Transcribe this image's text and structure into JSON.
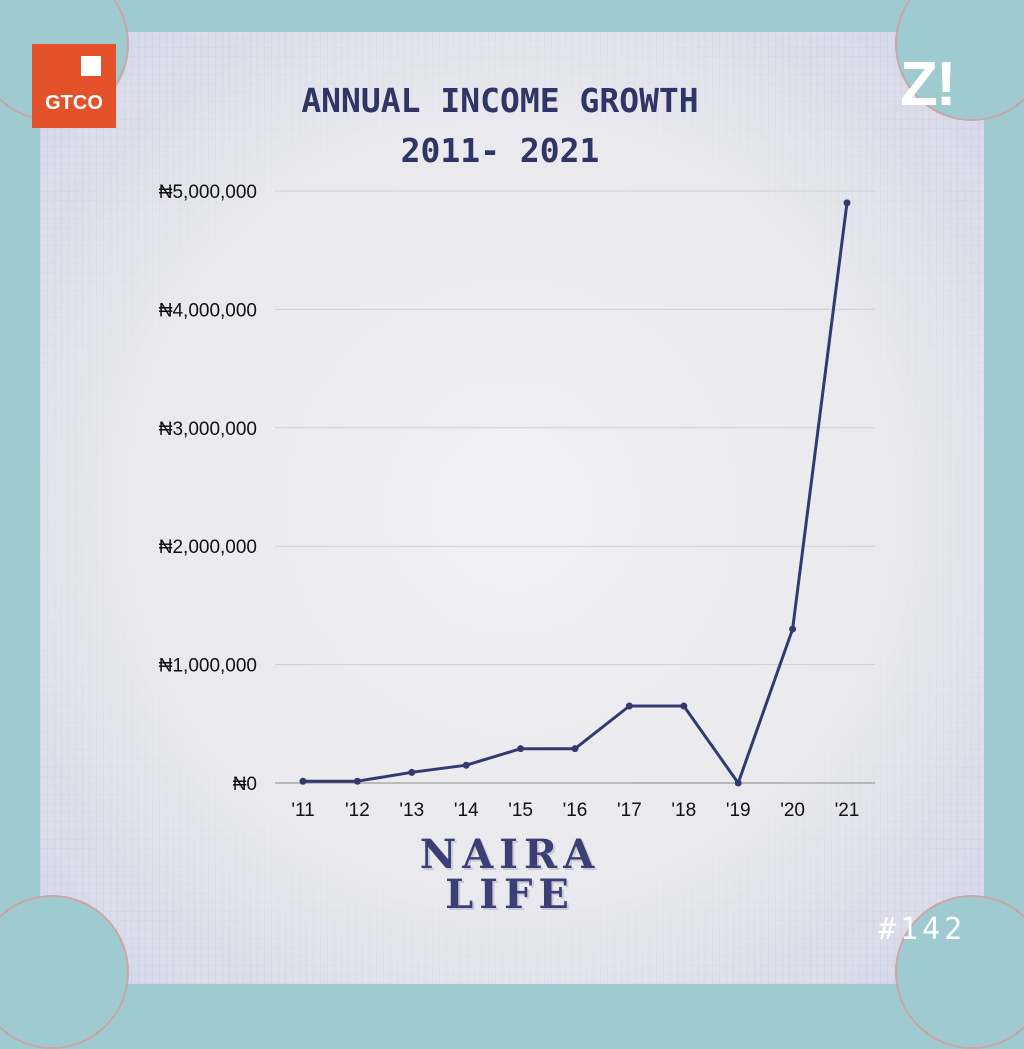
{
  "branding": {
    "gtco_logo_text": "GTCO",
    "z_logo_text": "Z!",
    "issue_number": "#142",
    "brand_word_line1": "NAIRA",
    "brand_word_line2": "LIFE"
  },
  "colors": {
    "background": "#9fcbd0",
    "line": "#333a72",
    "title": "#2f3565",
    "gtco": "#e3502a"
  },
  "chart_data": {
    "type": "line",
    "title_line1": "ANNUAL INCOME GROWTH",
    "title_line2": "2011- 2021",
    "xlabel": "",
    "ylabel": "",
    "x": [
      "'11",
      "'12",
      "'13",
      "'14",
      "'15",
      "'16",
      "'17",
      "'18",
      "'19",
      "'20",
      "'21"
    ],
    "series": [
      {
        "values": [
          15000,
          15000,
          90000,
          150000,
          290000,
          290000,
          650000,
          650000,
          0,
          1300000,
          4900000
        ]
      }
    ],
    "y_ticks": [
      0,
      1000000,
      2000000,
      3000000,
      4000000,
      5000000
    ],
    "y_tick_labels": [
      "₦0",
      "₦1,000,000",
      "₦2,000,000",
      "₦3,000,000",
      "₦4,000,000",
      "₦5,000,000"
    ],
    "ylim": [
      0,
      5000000
    ],
    "grid": true,
    "legend": "none"
  }
}
